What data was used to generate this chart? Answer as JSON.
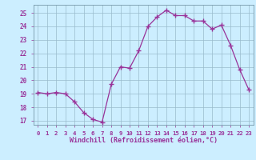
{
  "x": [
    0,
    1,
    2,
    3,
    4,
    5,
    6,
    7,
    8,
    9,
    10,
    11,
    12,
    13,
    14,
    15,
    16,
    17,
    18,
    19,
    20,
    21,
    22,
    23
  ],
  "y": [
    19.1,
    19.0,
    19.1,
    19.0,
    18.4,
    17.6,
    17.1,
    16.9,
    19.7,
    21.0,
    20.9,
    22.2,
    24.0,
    24.7,
    25.2,
    24.8,
    24.8,
    24.4,
    24.4,
    23.8,
    24.1,
    22.6,
    20.8,
    19.3
  ],
  "xlabel": "Windchill (Refroidissement éolien,°C)",
  "ylim": [
    16.7,
    25.6
  ],
  "xlim": [
    -0.5,
    23.5
  ],
  "line_color": "#993399",
  "marker_color": "#993399",
  "bg_color": "#cceeff",
  "grid_color": "#99bbcc",
  "tick_label_color": "#993399",
  "axis_label_color": "#993399",
  "yticks": [
    17,
    18,
    19,
    20,
    21,
    22,
    23,
    24,
    25
  ],
  "xticks": [
    0,
    1,
    2,
    3,
    4,
    5,
    6,
    7,
    8,
    9,
    10,
    11,
    12,
    13,
    14,
    15,
    16,
    17,
    18,
    19,
    20,
    21,
    22,
    23
  ]
}
